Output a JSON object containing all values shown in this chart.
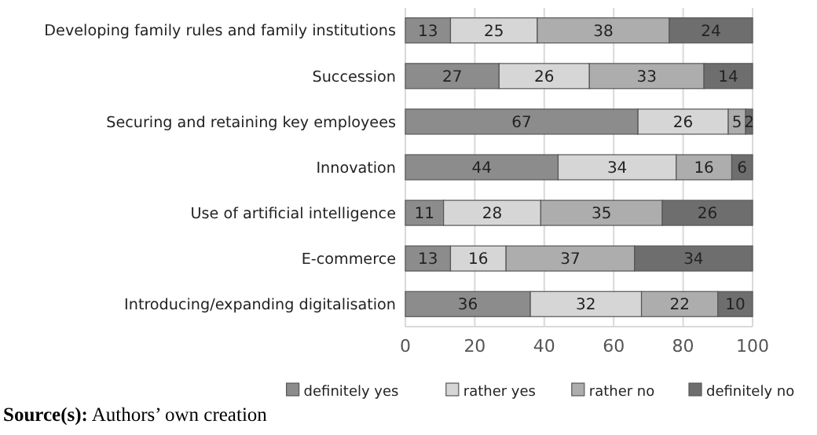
{
  "chart_data": {
    "type": "bar",
    "orientation": "horizontal",
    "stacked": true,
    "data_labels": true,
    "grid": "x",
    "legend": "bottom",
    "categories": [
      "Developing family rules and family institutions",
      "Succession",
      "Securing and retaining key employees",
      "Innovation",
      "Use of artificial intelligence",
      "E-commerce",
      "Introducing/expanding digitalisation"
    ],
    "series": [
      {
        "name": "definitely yes",
        "color": "#8c8c8c",
        "values": [
          13,
          27,
          67,
          44,
          11,
          13,
          36
        ]
      },
      {
        "name": "rather yes",
        "color": "#d6d6d6",
        "values": [
          25,
          26,
          26,
          34,
          28,
          16,
          32
        ]
      },
      {
        "name": "rather no",
        "color": "#adadad",
        "values": [
          38,
          33,
          5,
          16,
          35,
          37,
          22
        ]
      },
      {
        "name": "definitely no",
        "color": "#6e6e6e",
        "values": [
          24,
          14,
          2,
          6,
          26,
          34,
          10
        ]
      }
    ],
    "xlim": [
      0,
      100
    ],
    "xticks": [
      0,
      20,
      40,
      60,
      80,
      100
    ],
    "annotations": [
      "Source(s): Authors’ own creation"
    ]
  }
}
